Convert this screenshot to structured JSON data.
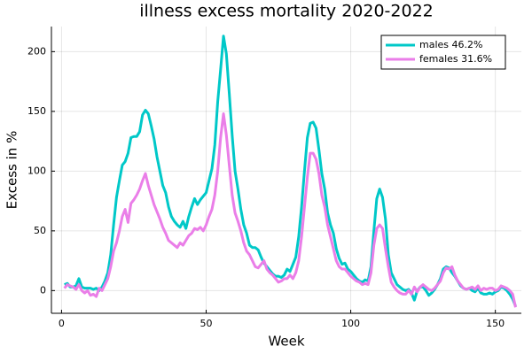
{
  "chart_data": {
    "type": "line",
    "title": "illness excess mortality 2020-2022",
    "x_label": "Week",
    "y_label": "Excess in %",
    "x": [
      1,
      2,
      3,
      4,
      5,
      6,
      7,
      8,
      9,
      10,
      11,
      12,
      13,
      14,
      15,
      16,
      17,
      18,
      19,
      20,
      21,
      22,
      23,
      24,
      25,
      26,
      27,
      28,
      29,
      30,
      31,
      32,
      33,
      34,
      35,
      36,
      37,
      38,
      39,
      40,
      41,
      42,
      43,
      44,
      45,
      46,
      47,
      48,
      49,
      50,
      51,
      52,
      53,
      54,
      55,
      56,
      57,
      58,
      59,
      60,
      61,
      62,
      63,
      64,
      65,
      66,
      67,
      68,
      69,
      70,
      71,
      72,
      73,
      74,
      75,
      76,
      77,
      78,
      79,
      80,
      81,
      82,
      83,
      84,
      85,
      86,
      87,
      88,
      89,
      90,
      91,
      92,
      93,
      94,
      95,
      96,
      97,
      98,
      99,
      100,
      101,
      102,
      103,
      104,
      105,
      106,
      107,
      108,
      109,
      110,
      111,
      112,
      113,
      114,
      115,
      116,
      117,
      118,
      119,
      120,
      121,
      122,
      123,
      124,
      125,
      126,
      127,
      128,
      129,
      130,
      131,
      132,
      133,
      134,
      135,
      136,
      137,
      138,
      139,
      140,
      141,
      142,
      143,
      144,
      145,
      146,
      147,
      148,
      149,
      150,
      151,
      152,
      153,
      154,
      155,
      156,
      157
    ],
    "series": [
      {
        "name": "males 46.2%",
        "color": "#00c8c8",
        "values": [
          5,
          6,
          3,
          3,
          4,
          10,
          3,
          2,
          2,
          2,
          1,
          2,
          0,
          3,
          8,
          15,
          30,
          55,
          78,
          92,
          105,
          108,
          115,
          128,
          129,
          129,
          133,
          147,
          151,
          148,
          138,
          127,
          112,
          100,
          88,
          82,
          70,
          62,
          58,
          55,
          53,
          58,
          52,
          62,
          70,
          77,
          72,
          76,
          79,
          82,
          92,
          102,
          122,
          158,
          185,
          213,
          198,
          165,
          130,
          100,
          85,
          68,
          55,
          48,
          38,
          36,
          36,
          34,
          28,
          23,
          20,
          17,
          14,
          12,
          12,
          11,
          13,
          18,
          16,
          22,
          28,
          45,
          70,
          100,
          128,
          140,
          141,
          136,
          118,
          98,
          85,
          65,
          55,
          48,
          35,
          27,
          22,
          23,
          18,
          16,
          13,
          10,
          8,
          7,
          9,
          8,
          20,
          50,
          77,
          85,
          78,
          60,
          30,
          15,
          10,
          5,
          3,
          1,
          0,
          1,
          -2,
          -8,
          0,
          3,
          3,
          0,
          -4,
          -2,
          1,
          5,
          10,
          18,
          20,
          19,
          15,
          12,
          8,
          4,
          2,
          1,
          2,
          0,
          -1,
          2,
          -2,
          -3,
          -3,
          -2,
          -3,
          -1,
          0,
          3,
          2,
          0,
          -3,
          -7,
          -13
        ]
      },
      {
        "name": "females 31.6%",
        "color": "#ea7ee8",
        "values": [
          2,
          5,
          4,
          3,
          1,
          5,
          0,
          -2,
          0,
          -4,
          -3,
          -5,
          2,
          0,
          5,
          10,
          20,
          33,
          40,
          50,
          62,
          68,
          57,
          73,
          76,
          80,
          85,
          92,
          98,
          88,
          80,
          72,
          66,
          60,
          53,
          48,
          42,
          40,
          38,
          36,
          40,
          38,
          42,
          46,
          48,
          52,
          51,
          53,
          50,
          55,
          62,
          68,
          80,
          100,
          128,
          148,
          130,
          105,
          80,
          65,
          58,
          50,
          40,
          33,
          30,
          25,
          20,
          19,
          22,
          25,
          18,
          15,
          13,
          10,
          7,
          8,
          10,
          10,
          13,
          10,
          15,
          25,
          45,
          70,
          95,
          115,
          115,
          110,
          98,
          80,
          70,
          55,
          45,
          35,
          25,
          20,
          18,
          18,
          15,
          12,
          10,
          8,
          7,
          5,
          6,
          5,
          15,
          38,
          52,
          55,
          52,
          35,
          20,
          7,
          3,
          0,
          -2,
          -3,
          -3,
          0,
          -3,
          3,
          -1,
          3,
          5,
          3,
          1,
          0,
          2,
          5,
          8,
          15,
          19,
          18,
          20,
          13,
          8,
          5,
          2,
          1,
          2,
          3,
          1,
          4,
          0,
          2,
          1,
          2,
          2,
          0,
          1,
          4,
          3,
          2,
          0,
          -3,
          -14
        ]
      }
    ],
    "xlim": [
      -3.5,
      159
    ],
    "xticks": [
      0,
      50,
      100,
      150
    ],
    "ylim": [
      -19,
      221
    ],
    "yticks": [
      0,
      50,
      100,
      150,
      200
    ],
    "grid": true,
    "legend": "top-right"
  }
}
